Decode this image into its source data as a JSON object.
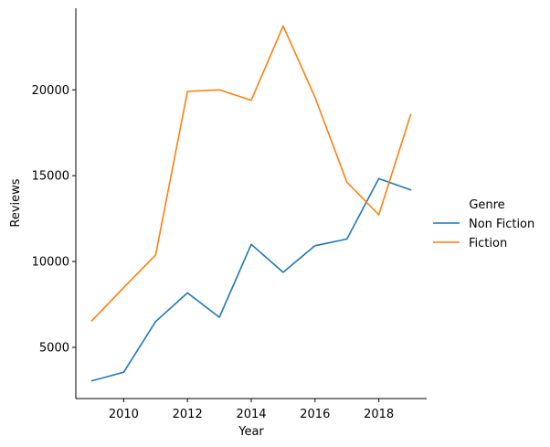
{
  "chart_data": {
    "type": "line",
    "title": "",
    "xlabel": "Year",
    "ylabel": "Reviews",
    "x": [
      2009,
      2010,
      2011,
      2012,
      2013,
      2014,
      2015,
      2016,
      2017,
      2018,
      2019
    ],
    "series": [
      {
        "name": "Non Fiction",
        "color": "#1f77b4",
        "values": [
          3050,
          3550,
          6500,
          8170,
          6750,
          11000,
          9370,
          10920,
          11310,
          14830,
          14170
        ]
      },
      {
        "name": "Fiction",
        "color": "#ff7f0e",
        "values": [
          6550,
          8480,
          10370,
          19910,
          20000,
          19390,
          23720,
          19560,
          14620,
          12720,
          18550
        ]
      }
    ],
    "xticks": [
      2010,
      2012,
      2014,
      2016,
      2018
    ],
    "xtick_labels": [
      "2010",
      "2012",
      "2014",
      "2016",
      "2018"
    ],
    "yticks": [
      5000,
      10000,
      15000,
      20000
    ],
    "ytick_labels": [
      "5000",
      "10000",
      "15000",
      "20000"
    ],
    "xlim": [
      2008.5,
      2019.5
    ],
    "ylim": [
      2016,
      24754
    ],
    "grid": false,
    "legend": {
      "title": "Genre",
      "position": "right"
    }
  }
}
